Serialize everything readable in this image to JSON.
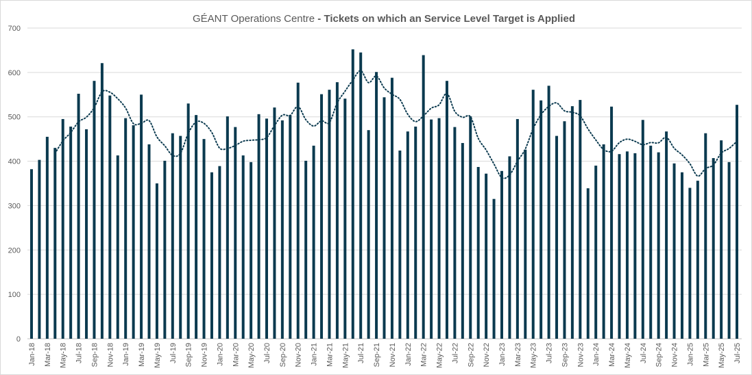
{
  "chart_data": {
    "type": "bar",
    "title_regular": "GÉANT Operations Centre",
    "title_bold": " - Tickets on which an Service Level Target is Applied",
    "ylim": [
      0,
      700
    ],
    "yticks": [
      0,
      100,
      200,
      300,
      400,
      500,
      600,
      700
    ],
    "grid": true,
    "bar_color": "#0b3a4f",
    "trendline": {
      "type": "moving_average",
      "period": 4,
      "style": "dotted",
      "color": "#0b3a4f"
    },
    "categories": [
      "Jan-18",
      "Feb-18",
      "Mar-18",
      "Apr-18",
      "May-18",
      "Jun-18",
      "Jul-18",
      "Aug-18",
      "Sep-18",
      "Oct-18",
      "Nov-18",
      "Dec-18",
      "Jan-19",
      "Feb-19",
      "Mar-19",
      "Apr-19",
      "May-19",
      "Jun-19",
      "Jul-19",
      "Aug-19",
      "Sep-19",
      "Oct-19",
      "Nov-19",
      "Dec-19",
      "Jan-20",
      "Feb-20",
      "Mar-20",
      "Apr-20",
      "May-20",
      "Jun-20",
      "Jul-20",
      "Aug-20",
      "Sep-20",
      "Oct-20",
      "Nov-20",
      "Dec-20",
      "Jan-21",
      "Feb-21",
      "Mar-21",
      "Apr-21",
      "May-21",
      "Jun-21",
      "Jul-21",
      "Aug-21",
      "Sep-21",
      "Oct-21",
      "Nov-21",
      "Dec-21",
      "Jan-22",
      "Feb-22",
      "Mar-22",
      "Apr-22",
      "May-22",
      "Jun-22",
      "Jul-22",
      "Aug-22",
      "Sep-22",
      "Oct-22",
      "Nov-22",
      "Dec-22",
      "Jan-23",
      "Feb-23",
      "Mar-23",
      "Apr-23",
      "May-23",
      "Jun-23",
      "Jul-23",
      "Aug-23",
      "Sep-23",
      "Oct-23",
      "Nov-23",
      "Dec-23",
      "Jan-24",
      "Feb-24",
      "Mar-24",
      "Apr-24",
      "May-24",
      "Jun-24",
      "Jul-24",
      "Aug-24",
      "Sep-24",
      "Oct-24",
      "Nov-24",
      "Dec-24",
      "Jan-25",
      "Feb-25",
      "Mar-25",
      "Apr-25",
      "May-25",
      "Jun-25",
      "Jul-25"
    ],
    "values": [
      382,
      403,
      455,
      430,
      495,
      478,
      552,
      472,
      581,
      621,
      548,
      413,
      497,
      481,
      550,
      438,
      350,
      401,
      463,
      457,
      530,
      504,
      450,
      375,
      389,
      501,
      477,
      413,
      398,
      506,
      496,
      521,
      492,
      504,
      577,
      401,
      435,
      551,
      561,
      578,
      541,
      652,
      645,
      470,
      601,
      544,
      588,
      424,
      467,
      478,
      639,
      494,
      497,
      581,
      477,
      441,
      501,
      387,
      372,
      315,
      378,
      411,
      495,
      426,
      561,
      537,
      570,
      457,
      490,
      524,
      538,
      339,
      390,
      438,
      523,
      416,
      422,
      418,
      493,
      435,
      420,
      467,
      395,
      375,
      340,
      356,
      463,
      407,
      447,
      398,
      527
    ]
  }
}
